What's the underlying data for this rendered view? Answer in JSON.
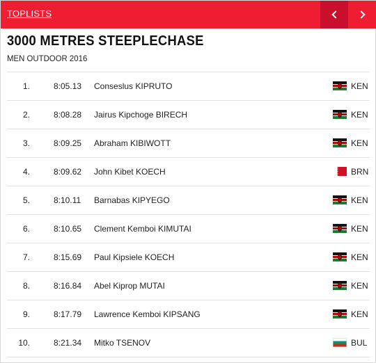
{
  "header": {
    "title": "TOPLISTS"
  },
  "event": {
    "title": "3000 METRES STEEPLECHASE",
    "subtitle": "MEN OUTDOOR 2016"
  },
  "icons": {
    "prev": "chevron-left-icon",
    "next": "chevron-right-icon"
  },
  "colors": {
    "brand_red": "#ee1d32",
    "brand_red_dark": "#c8102e"
  },
  "results": [
    {
      "rank": "1.",
      "mark": "8:05.13",
      "name": "Conseslus KIPRUTO",
      "country": "KEN"
    },
    {
      "rank": "2.",
      "mark": "8:08.28",
      "name": "Jairus Kipchoge BIRECH",
      "country": "KEN"
    },
    {
      "rank": "3.",
      "mark": "8:09.25",
      "name": "Abraham KIBIWOTT",
      "country": "KEN"
    },
    {
      "rank": "4.",
      "mark": "8:09.62",
      "name": "John Kibet KOECH",
      "country": "BRN"
    },
    {
      "rank": "5.",
      "mark": "8:10.11",
      "name": "Barnabas KIPYEGO",
      "country": "KEN"
    },
    {
      "rank": "6.",
      "mark": "8:10.65",
      "name": "Clement Kemboi KIMUTAI",
      "country": "KEN"
    },
    {
      "rank": "7.",
      "mark": "8:15.69",
      "name": "Paul Kipsiele KOECH",
      "country": "KEN"
    },
    {
      "rank": "8.",
      "mark": "8:16.84",
      "name": "Abel Kiprop MUTAI",
      "country": "KEN"
    },
    {
      "rank": "9.",
      "mark": "8:17.79",
      "name": "Lawrence Kemboi KIPSANG",
      "country": "KEN"
    },
    {
      "rank": "10.",
      "mark": "8:21.34",
      "name": "Mitko TSENOV",
      "country": "BUL"
    }
  ]
}
